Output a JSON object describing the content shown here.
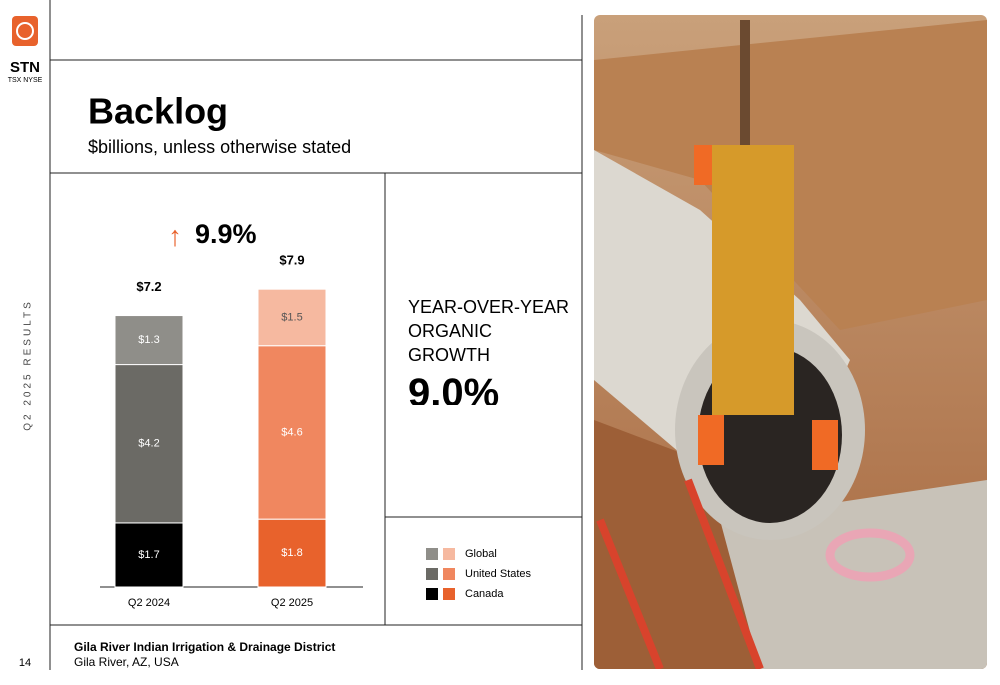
{
  "logo": {
    "ticker": "STN",
    "exchange": "TSX NYSE"
  },
  "side_label": "Q2 2025 RESULTS",
  "header": {
    "title": "Backlog",
    "subtitle": "$billions, unless otherwise stated"
  },
  "chart_data": {
    "type": "bar",
    "stacked": true,
    "categories": [
      "Q2 2024",
      "Q2 2025"
    ],
    "series": [
      {
        "name": "Canada",
        "colors": [
          "#000000",
          "#e8622c"
        ],
        "values": [
          1.7,
          1.8
        ],
        "value_labels": [
          "$1.7",
          "$1.8"
        ]
      },
      {
        "name": "United States",
        "colors": [
          "#6b6a65",
          "#f0875f"
        ],
        "values": [
          4.2,
          4.6
        ],
        "value_labels": [
          "$4.2",
          "$4.6"
        ]
      },
      {
        "name": "Global",
        "colors": [
          "#8f8e89",
          "#f6b9a0"
        ],
        "values": [
          1.3,
          1.5
        ],
        "value_labels": [
          "$1.3",
          "$1.5"
        ]
      }
    ],
    "totals": [
      7.2,
      7.9
    ],
    "total_labels": [
      "$7.2",
      "$7.9"
    ],
    "annotation": "9.9%"
  },
  "kpi": {
    "label": "YEAR-OVER-YEAR ORGANIC GROWTH",
    "value": "9.0%"
  },
  "footer": {
    "project": "Gila River Indian Irrigation & Drainage District",
    "location": "Gila River, AZ, USA",
    "page": "14"
  }
}
